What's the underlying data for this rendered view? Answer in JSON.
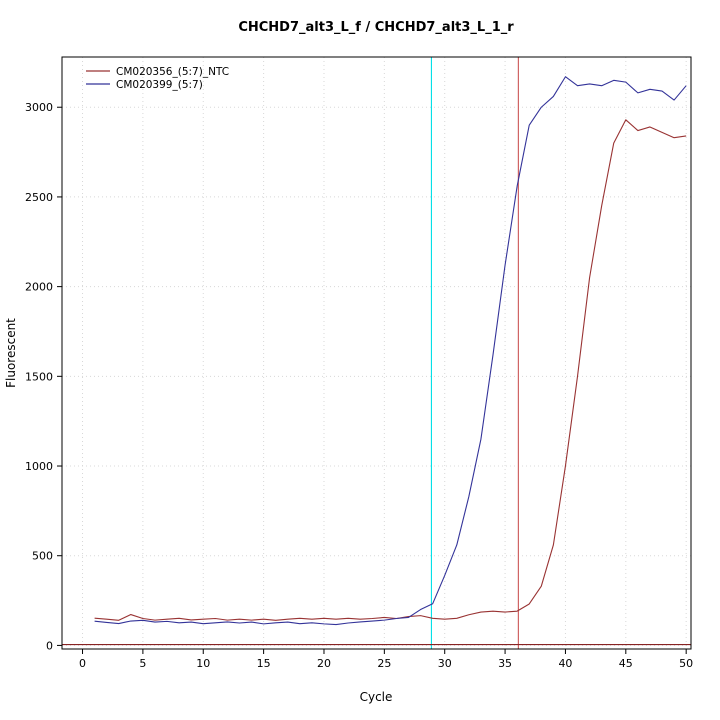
{
  "chart_data": {
    "type": "line",
    "title": "CHCHD7_alt3_L_f / CHCHD7_alt3_L_1_r",
    "xlabel": "Cycle",
    "ylabel": "Fluorescent",
    "xlim": [
      0,
      50
    ],
    "ylim": [
      0,
      3200
    ],
    "xticks": [
      0,
      5,
      10,
      15,
      20,
      25,
      30,
      35,
      40,
      45,
      50
    ],
    "yticks": [
      0,
      500,
      1000,
      1500,
      2000,
      2500,
      3000
    ],
    "grid": true,
    "legend_position": "top-left",
    "x": [
      1,
      2,
      3,
      4,
      5,
      6,
      7,
      8,
      9,
      10,
      11,
      12,
      13,
      14,
      15,
      16,
      17,
      18,
      19,
      20,
      21,
      22,
      23,
      24,
      25,
      26,
      27,
      28,
      29,
      30,
      31,
      32,
      33,
      34,
      35,
      36,
      37,
      38,
      39,
      40,
      41,
      42,
      43,
      44,
      45,
      46,
      47,
      48,
      49,
      50
    ],
    "series": [
      {
        "name": "CM020356_(5:7)_NTC",
        "color": "#993333",
        "values": [
          152,
          146,
          140,
          172,
          150,
          141,
          146,
          151,
          142,
          146,
          150,
          141,
          146,
          141,
          146,
          140,
          146,
          151,
          146,
          151,
          146,
          151,
          146,
          150,
          156,
          150,
          161,
          166,
          151,
          146,
          151,
          171,
          186,
          191,
          186,
          191,
          231,
          330,
          560,
          1000,
          1500,
          2050,
          2450,
          2800,
          2930,
          2870,
          2890,
          2860,
          2830,
          2840
        ]
      },
      {
        "name": "CM020399_(5:7)",
        "color": "#333399",
        "values": [
          135,
          128,
          122,
          136,
          140,
          130,
          134,
          126,
          130,
          121,
          126,
          131,
          125,
          130,
          120,
          126,
          130,
          121,
          126,
          120,
          116,
          125,
          131,
          136,
          141,
          150,
          156,
          200,
          232,
          390,
          560,
          830,
          1150,
          1620,
          2120,
          2560,
          2900,
          3000,
          3060,
          3170,
          3120,
          3130,
          3120,
          3150,
          3140,
          3080,
          3100,
          3090,
          3040,
          3120
        ]
      }
    ],
    "vlines": [
      {
        "x": 28.9,
        "color": "#00E0E8"
      },
      {
        "x": 36.1,
        "color": "#CC5555"
      }
    ],
    "hlines": [
      {
        "y": 5,
        "color": "#882222"
      }
    ]
  }
}
